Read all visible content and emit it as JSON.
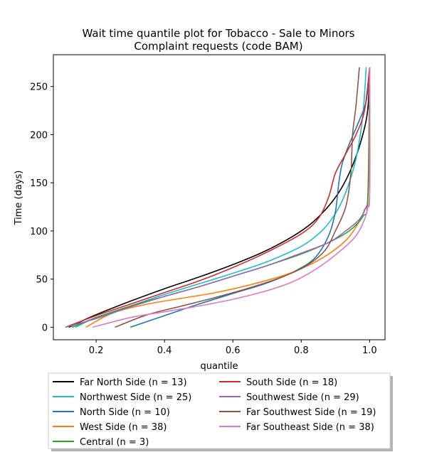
{
  "chart_data": {
    "type": "line",
    "title": [
      "Wait time quantile plot for Tobacco - Sale to Minors",
      "Complaint  requests (code BAM)"
    ],
    "xlabel": "quantile",
    "ylabel": "Time (days)",
    "xlim": [
      0.075,
      1.045
    ],
    "ylim": [
      -13,
      283
    ],
    "xticks": [
      0.2,
      0.4,
      0.6,
      0.8,
      1.0
    ],
    "xtick_labels": [
      "0.2",
      "0.4",
      "0.6",
      "0.8",
      "1.0"
    ],
    "yticks": [
      0,
      50,
      100,
      150,
      200,
      250
    ],
    "ytick_labels": [
      "0",
      "50",
      "100",
      "150",
      "200",
      "250"
    ],
    "grid": false,
    "legend_position": "below plot, 2 columns",
    "series": [
      {
        "name": "Far North Side (n = 13)",
        "color": "#000000",
        "points": [
          [
            0.12,
            0
          ],
          [
            0.15,
            5
          ],
          [
            0.2,
            13
          ],
          [
            0.3,
            27
          ],
          [
            0.4,
            40
          ],
          [
            0.5,
            52
          ],
          [
            0.6,
            65
          ],
          [
            0.7,
            80
          ],
          [
            0.8,
            100
          ],
          [
            0.86,
            118
          ],
          [
            0.91,
            140
          ],
          [
            0.95,
            168
          ],
          [
            0.98,
            200
          ],
          [
            0.995,
            228
          ],
          [
            1.0,
            270
          ]
        ]
      },
      {
        "name": "Northwest Side (n = 25)",
        "color": "#17becf",
        "points": [
          [
            0.14,
            0
          ],
          [
            0.2,
            10
          ],
          [
            0.3,
            22
          ],
          [
            0.4,
            34
          ],
          [
            0.5,
            45
          ],
          [
            0.6,
            56
          ],
          [
            0.7,
            68
          ],
          [
            0.8,
            84
          ],
          [
            0.86,
            100
          ],
          [
            0.9,
            118
          ],
          [
            0.93,
            140
          ],
          [
            0.96,
            175
          ],
          [
            0.98,
            220
          ],
          [
            0.99,
            270
          ]
        ]
      },
      {
        "name": "North Side (n = 10)",
        "color": "#1f77b4",
        "points": [
          [
            0.3,
            0
          ],
          [
            0.4,
            12
          ],
          [
            0.5,
            24
          ],
          [
            0.6,
            35
          ],
          [
            0.7,
            46
          ],
          [
            0.78,
            58
          ],
          [
            0.84,
            72
          ],
          [
            0.88,
            95
          ],
          [
            0.9,
            120
          ],
          [
            0.91,
            150
          ],
          [
            0.92,
            170
          ],
          [
            0.94,
            190
          ],
          [
            0.97,
            215
          ],
          [
            0.99,
            235
          ],
          [
            1.0,
            270
          ]
        ]
      },
      {
        "name": "West Side (n = 38)",
        "color": "#ff7f0e",
        "points": [
          [
            0.17,
            0
          ],
          [
            0.25,
            15
          ],
          [
            0.35,
            24
          ],
          [
            0.45,
            30
          ],
          [
            0.55,
            36
          ],
          [
            0.65,
            44
          ],
          [
            0.75,
            54
          ],
          [
            0.82,
            64
          ],
          [
            0.88,
            76
          ],
          [
            0.93,
            90
          ],
          [
            0.96,
            104
          ],
          [
            0.985,
            122
          ],
          [
            0.995,
            140
          ],
          [
            1.0,
            270
          ]
        ]
      },
      {
        "name": "Central (n = 3)",
        "color": "#2ca02c",
        "points": [
          [
            0.13,
            0
          ],
          [
            0.2,
            10
          ],
          [
            0.3,
            22
          ],
          [
            0.4,
            32
          ],
          [
            0.5,
            42
          ],
          [
            0.6,
            53
          ],
          [
            0.7,
            64
          ],
          [
            0.8,
            76
          ],
          [
            0.88,
            88
          ],
          [
            0.94,
            100
          ],
          [
            0.98,
            115
          ],
          [
            0.995,
            135
          ],
          [
            1.0,
            270
          ]
        ]
      },
      {
        "name": "South Side (n = 18)",
        "color": "#d62728",
        "points": [
          [
            0.11,
            0
          ],
          [
            0.2,
            12
          ],
          [
            0.3,
            24
          ],
          [
            0.4,
            36
          ],
          [
            0.5,
            48
          ],
          [
            0.6,
            62
          ],
          [
            0.7,
            78
          ],
          [
            0.8,
            97
          ],
          [
            0.85,
            113
          ],
          [
            0.88,
            135
          ],
          [
            0.9,
            160
          ],
          [
            0.93,
            180
          ],
          [
            0.96,
            200
          ],
          [
            0.985,
            225
          ],
          [
            1.0,
            270
          ]
        ]
      },
      {
        "name": "Southwest Side (n = 29)",
        "color": "#9467bd",
        "points": [
          [
            0.11,
            0
          ],
          [
            0.2,
            9
          ],
          [
            0.3,
            21
          ],
          [
            0.4,
            32
          ],
          [
            0.5,
            42
          ],
          [
            0.6,
            53
          ],
          [
            0.7,
            64
          ],
          [
            0.8,
            77
          ],
          [
            0.88,
            88
          ],
          [
            0.93,
            100
          ],
          [
            0.97,
            112
          ],
          [
            0.99,
            125
          ],
          [
            1.0,
            140
          ],
          [
            1.0,
            270
          ]
        ]
      },
      {
        "name": "Far Southwest Side (n = 19)",
        "color": "#8c564b",
        "points": [
          [
            0.255,
            0
          ],
          [
            0.35,
            13
          ],
          [
            0.45,
            22
          ],
          [
            0.55,
            31
          ],
          [
            0.65,
            41
          ],
          [
            0.75,
            53
          ],
          [
            0.82,
            65
          ],
          [
            0.87,
            80
          ],
          [
            0.9,
            100
          ],
          [
            0.93,
            125
          ],
          [
            0.945,
            160
          ],
          [
            0.95,
            200
          ],
          [
            0.96,
            230
          ],
          [
            0.97,
            270
          ]
        ]
      },
      {
        "name": "Far Southeast Side (n = 38)",
        "color": "#e377c2",
        "points": [
          [
            0.19,
            0
          ],
          [
            0.3,
            10
          ],
          [
            0.4,
            16
          ],
          [
            0.5,
            22
          ],
          [
            0.6,
            29
          ],
          [
            0.7,
            38
          ],
          [
            0.78,
            48
          ],
          [
            0.85,
            62
          ],
          [
            0.91,
            78
          ],
          [
            0.96,
            95
          ],
          [
            0.985,
            112
          ],
          [
            0.995,
            125
          ],
          [
            1.0,
            140
          ],
          [
            1.0,
            270
          ]
        ]
      }
    ]
  }
}
